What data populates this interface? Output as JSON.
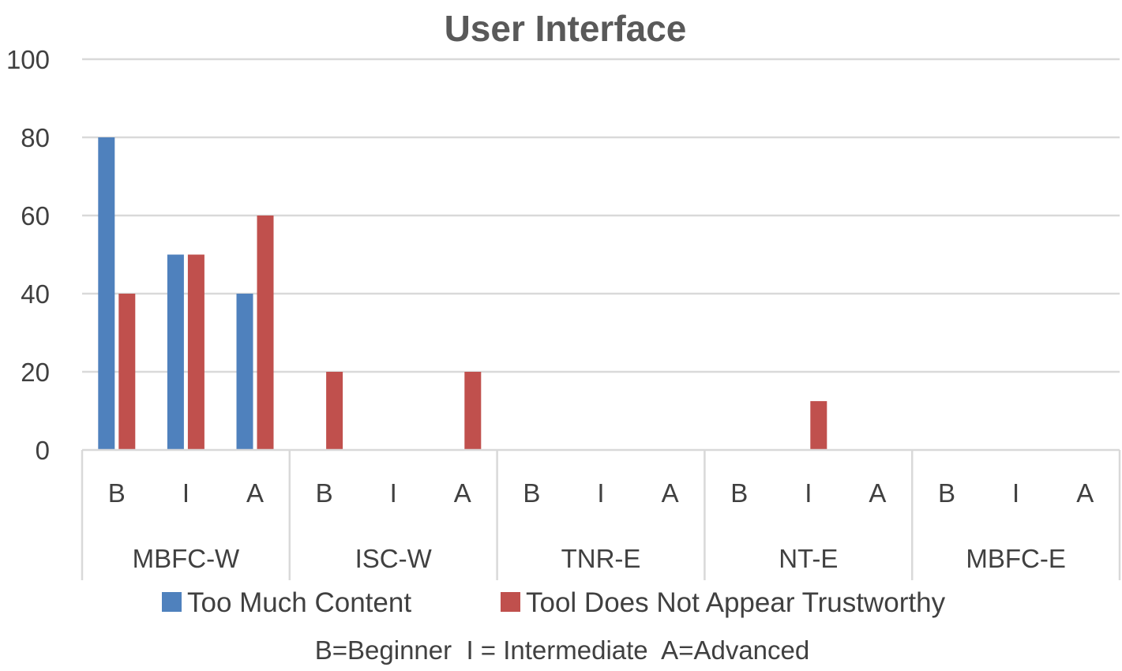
{
  "chart_data": {
    "type": "bar",
    "title": "User Interface",
    "xlabel": "",
    "ylabel": "",
    "ylim": [
      0,
      100
    ],
    "yticks": [
      0,
      20,
      40,
      60,
      80,
      100
    ],
    "grid": true,
    "legend_position": "bottom",
    "groups": [
      {
        "label": "MBFC-W",
        "categories": [
          "B",
          "I",
          "A"
        ]
      },
      {
        "label": "ISC-W",
        "categories": [
          "B",
          "I",
          "A"
        ]
      },
      {
        "label": "TNR-E",
        "categories": [
          "B",
          "I",
          "A"
        ]
      },
      {
        "label": "NT-E",
        "categories": [
          "B",
          "I",
          "A"
        ]
      },
      {
        "label": "MBFC-E",
        "categories": [
          "B",
          "I",
          "A"
        ]
      }
    ],
    "series": [
      {
        "name": "Too Much Content",
        "color": "#4F81BD",
        "values": [
          80,
          50,
          40,
          0,
          0,
          0,
          0,
          0,
          0,
          0,
          0,
          0,
          0,
          0,
          0
        ]
      },
      {
        "name": "Tool Does Not Appear Trustworthy",
        "color": "#C0504D",
        "values": [
          40,
          50,
          60,
          20,
          0,
          20,
          0,
          0,
          0,
          0,
          12.5,
          0,
          0,
          0,
          0
        ]
      }
    ],
    "footnote": "B=Beginner  I = Intermediate  A=Advanced"
  }
}
